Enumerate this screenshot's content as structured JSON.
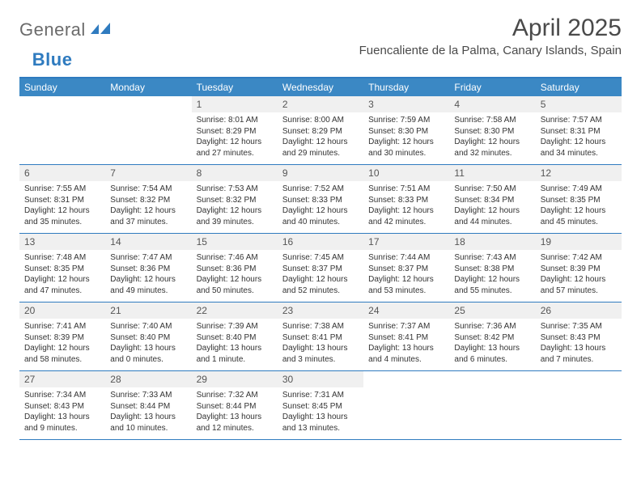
{
  "logo": {
    "general": "General",
    "blue": "Blue"
  },
  "title": "April 2025",
  "location": "Fuencaliente de la Palma, Canary Islands, Spain",
  "colors": {
    "header_bg": "#3b88c4",
    "border": "#2f7bbf",
    "daynum_bg": "#f0f0f0",
    "text": "#333333"
  },
  "weekdays": [
    "Sunday",
    "Monday",
    "Tuesday",
    "Wednesday",
    "Thursday",
    "Friday",
    "Saturday"
  ],
  "weeks": [
    [
      {
        "num": "",
        "lines": []
      },
      {
        "num": "",
        "lines": []
      },
      {
        "num": "1",
        "lines": [
          "Sunrise: 8:01 AM",
          "Sunset: 8:29 PM",
          "Daylight: 12 hours and 27 minutes."
        ]
      },
      {
        "num": "2",
        "lines": [
          "Sunrise: 8:00 AM",
          "Sunset: 8:29 PM",
          "Daylight: 12 hours and 29 minutes."
        ]
      },
      {
        "num": "3",
        "lines": [
          "Sunrise: 7:59 AM",
          "Sunset: 8:30 PM",
          "Daylight: 12 hours and 30 minutes."
        ]
      },
      {
        "num": "4",
        "lines": [
          "Sunrise: 7:58 AM",
          "Sunset: 8:30 PM",
          "Daylight: 12 hours and 32 minutes."
        ]
      },
      {
        "num": "5",
        "lines": [
          "Sunrise: 7:57 AM",
          "Sunset: 8:31 PM",
          "Daylight: 12 hours and 34 minutes."
        ]
      }
    ],
    [
      {
        "num": "6",
        "lines": [
          "Sunrise: 7:55 AM",
          "Sunset: 8:31 PM",
          "Daylight: 12 hours and 35 minutes."
        ]
      },
      {
        "num": "7",
        "lines": [
          "Sunrise: 7:54 AM",
          "Sunset: 8:32 PM",
          "Daylight: 12 hours and 37 minutes."
        ]
      },
      {
        "num": "8",
        "lines": [
          "Sunrise: 7:53 AM",
          "Sunset: 8:32 PM",
          "Daylight: 12 hours and 39 minutes."
        ]
      },
      {
        "num": "9",
        "lines": [
          "Sunrise: 7:52 AM",
          "Sunset: 8:33 PM",
          "Daylight: 12 hours and 40 minutes."
        ]
      },
      {
        "num": "10",
        "lines": [
          "Sunrise: 7:51 AM",
          "Sunset: 8:33 PM",
          "Daylight: 12 hours and 42 minutes."
        ]
      },
      {
        "num": "11",
        "lines": [
          "Sunrise: 7:50 AM",
          "Sunset: 8:34 PM",
          "Daylight: 12 hours and 44 minutes."
        ]
      },
      {
        "num": "12",
        "lines": [
          "Sunrise: 7:49 AM",
          "Sunset: 8:35 PM",
          "Daylight: 12 hours and 45 minutes."
        ]
      }
    ],
    [
      {
        "num": "13",
        "lines": [
          "Sunrise: 7:48 AM",
          "Sunset: 8:35 PM",
          "Daylight: 12 hours and 47 minutes."
        ]
      },
      {
        "num": "14",
        "lines": [
          "Sunrise: 7:47 AM",
          "Sunset: 8:36 PM",
          "Daylight: 12 hours and 49 minutes."
        ]
      },
      {
        "num": "15",
        "lines": [
          "Sunrise: 7:46 AM",
          "Sunset: 8:36 PM",
          "Daylight: 12 hours and 50 minutes."
        ]
      },
      {
        "num": "16",
        "lines": [
          "Sunrise: 7:45 AM",
          "Sunset: 8:37 PM",
          "Daylight: 12 hours and 52 minutes."
        ]
      },
      {
        "num": "17",
        "lines": [
          "Sunrise: 7:44 AM",
          "Sunset: 8:37 PM",
          "Daylight: 12 hours and 53 minutes."
        ]
      },
      {
        "num": "18",
        "lines": [
          "Sunrise: 7:43 AM",
          "Sunset: 8:38 PM",
          "Daylight: 12 hours and 55 minutes."
        ]
      },
      {
        "num": "19",
        "lines": [
          "Sunrise: 7:42 AM",
          "Sunset: 8:39 PM",
          "Daylight: 12 hours and 57 minutes."
        ]
      }
    ],
    [
      {
        "num": "20",
        "lines": [
          "Sunrise: 7:41 AM",
          "Sunset: 8:39 PM",
          "Daylight: 12 hours and 58 minutes."
        ]
      },
      {
        "num": "21",
        "lines": [
          "Sunrise: 7:40 AM",
          "Sunset: 8:40 PM",
          "Daylight: 13 hours and 0 minutes."
        ]
      },
      {
        "num": "22",
        "lines": [
          "Sunrise: 7:39 AM",
          "Sunset: 8:40 PM",
          "Daylight: 13 hours and 1 minute."
        ]
      },
      {
        "num": "23",
        "lines": [
          "Sunrise: 7:38 AM",
          "Sunset: 8:41 PM",
          "Daylight: 13 hours and 3 minutes."
        ]
      },
      {
        "num": "24",
        "lines": [
          "Sunrise: 7:37 AM",
          "Sunset: 8:41 PM",
          "Daylight: 13 hours and 4 minutes."
        ]
      },
      {
        "num": "25",
        "lines": [
          "Sunrise: 7:36 AM",
          "Sunset: 8:42 PM",
          "Daylight: 13 hours and 6 minutes."
        ]
      },
      {
        "num": "26",
        "lines": [
          "Sunrise: 7:35 AM",
          "Sunset: 8:43 PM",
          "Daylight: 13 hours and 7 minutes."
        ]
      }
    ],
    [
      {
        "num": "27",
        "lines": [
          "Sunrise: 7:34 AM",
          "Sunset: 8:43 PM",
          "Daylight: 13 hours and 9 minutes."
        ]
      },
      {
        "num": "28",
        "lines": [
          "Sunrise: 7:33 AM",
          "Sunset: 8:44 PM",
          "Daylight: 13 hours and 10 minutes."
        ]
      },
      {
        "num": "29",
        "lines": [
          "Sunrise: 7:32 AM",
          "Sunset: 8:44 PM",
          "Daylight: 13 hours and 12 minutes."
        ]
      },
      {
        "num": "30",
        "lines": [
          "Sunrise: 7:31 AM",
          "Sunset: 8:45 PM",
          "Daylight: 13 hours and 13 minutes."
        ]
      },
      {
        "num": "",
        "lines": []
      },
      {
        "num": "",
        "lines": []
      },
      {
        "num": "",
        "lines": []
      }
    ]
  ]
}
